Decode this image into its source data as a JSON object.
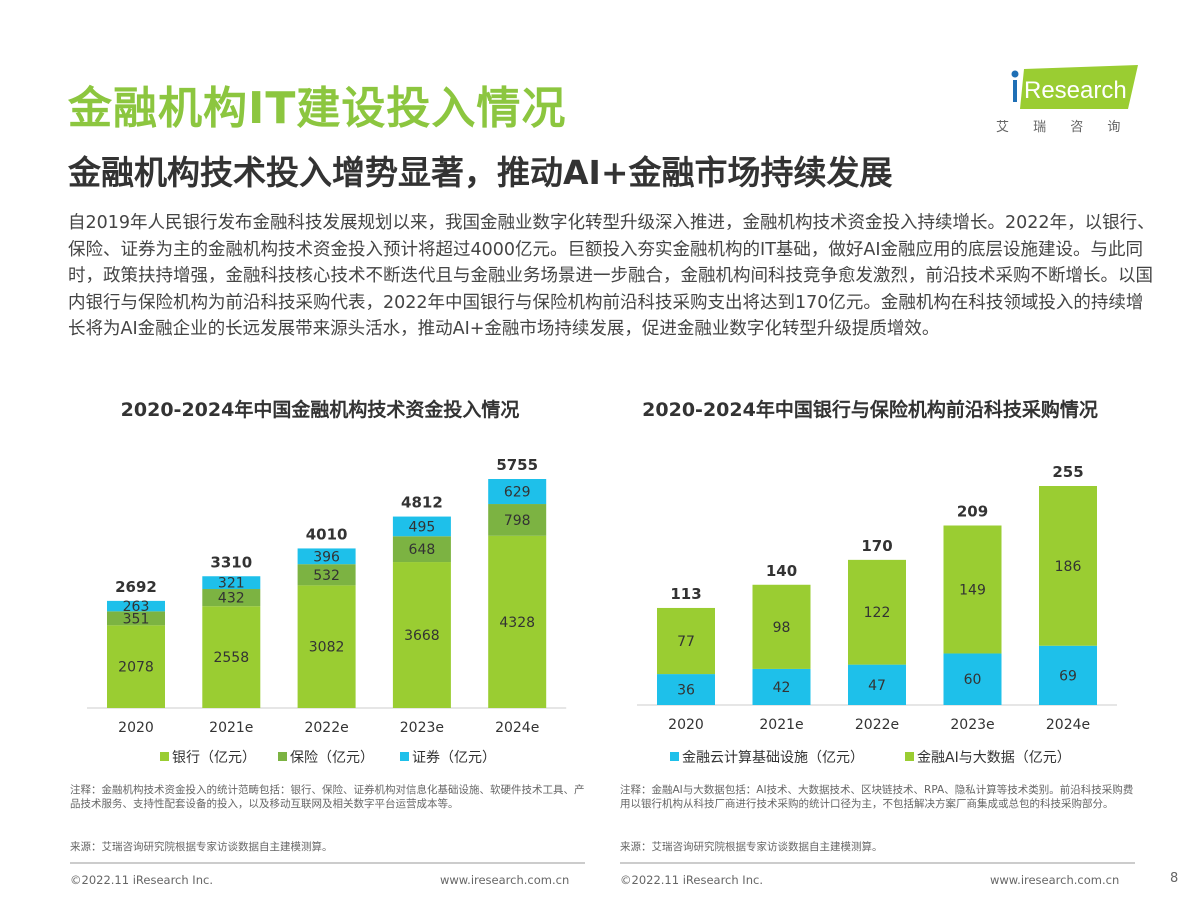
{
  "header": {
    "title": "金融机构IT建设投入情况",
    "subtitle": "金融机构技术投入增势显著，推动AI+金融市场持续发展",
    "logo_text": "iResearch",
    "logo_cn": "艾 瑞 咨 询"
  },
  "body_text": "自2019年人民银行发布金融科技发展规划以来，我国金融业数字化转型升级深入推进，金融机构技术资金投入持续增长。2022年，以银行、保险、证券为主的金融机构技术资金投入预计将超过4000亿元。巨额投入夯实金融机构的IT基础，做好AI金融应用的底层设施建设。与此同时，政策扶持增强，金融科技核心技术不断迭代且与金融业务场景进一步融合，金融机构间科技竞争愈发激烈，前沿技术采购不断增长。以国内银行与保险机构为前沿科技采购代表，2022年中国银行与保险机构前沿科技采购支出将达到170亿元。金融机构在科技领域投入的持续增长将为AI金融企业的长远发展带来源头活水，推动AI+金融市场持续发展，促进金融业数字化转型升级提质增效。",
  "chart_data": [
    {
      "type": "bar",
      "stacked": true,
      "title": "2020-2024年中国金融机构技术资金投入情况",
      "categories": [
        "2020",
        "2021e",
        "2022e",
        "2023e",
        "2024e"
      ],
      "series": [
        {
          "name": "银行（亿元）",
          "values": [
            2078,
            2558,
            3082,
            3668,
            4328
          ],
          "color": "#9acd32"
        },
        {
          "name": "保险（亿元）",
          "values": [
            351,
            432,
            532,
            648,
            798
          ],
          "color": "#7cb342"
        },
        {
          "name": "证券（亿元）",
          "values": [
            263,
            321,
            396,
            495,
            629
          ],
          "color": "#1ec0ea"
        }
      ],
      "totals": [
        2692,
        3310,
        4010,
        4812,
        5755
      ],
      "legend": "bottom"
    },
    {
      "type": "bar",
      "stacked": true,
      "title": "2020-2024年中国银行与保险机构前沿科技采购情况",
      "categories": [
        "2020",
        "2021e",
        "2022e",
        "2023e",
        "2024e"
      ],
      "series": [
        {
          "name": "金融云计算基础设施（亿元）",
          "values": [
            36,
            42,
            47,
            60,
            69
          ],
          "color": "#1ec0ea"
        },
        {
          "name": "金融AI与大数据（亿元）",
          "values": [
            77,
            98,
            122,
            149,
            186
          ],
          "color": "#9acd32"
        }
      ],
      "totals": [
        113,
        140,
        170,
        209,
        255
      ],
      "legend": "bottom"
    }
  ],
  "notes": {
    "left_note": "注释：金融机构技术资金投入的统计范畴包括：银行、保险、证券机构对信息化基础设施、软硬件技术工具、产品技术服务、支持性配套设备的投入，以及移动互联网及相关数字平台运营成本等。",
    "left_source": "来源：艾瑞咨询研究院根据专家访谈数据自主建模测算。",
    "right_note": "注释：金融AI与大数据包括：AI技术、大数据技术、区块链技术、RPA、隐私计算等技术类别。前沿科技采购费用以银行机构从科技厂商进行技术采购的统计口径为主，不包括解决方案厂商集成或总包的科技采购部分。",
    "right_source": "来源：艾瑞咨询研究院根据专家访谈数据自主建模测算。"
  },
  "footer": {
    "copyright": "©2022.11 iResearch Inc.",
    "url": "www.iresearch.com.cn",
    "page": "8"
  }
}
